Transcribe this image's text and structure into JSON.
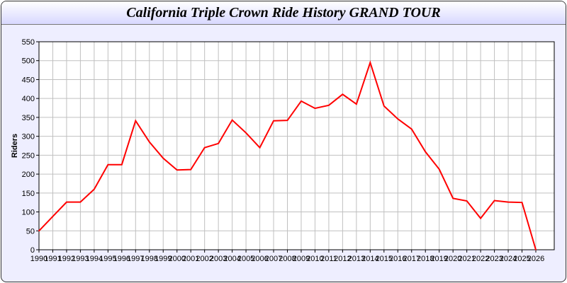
{
  "chart_data": {
    "type": "line",
    "title": "California Triple Crown Ride History GRAND TOUR",
    "xlabel": "",
    "ylabel": "Riders",
    "ylim": [
      0,
      550
    ],
    "yticks": [
      0,
      50,
      100,
      150,
      200,
      250,
      300,
      350,
      400,
      450,
      500,
      550
    ],
    "grid": true,
    "line_color": "#ff0000",
    "x": [
      1990,
      1991,
      1992,
      1993,
      1994,
      1995,
      1996,
      1997,
      1998,
      1999,
      2000,
      2001,
      2002,
      2003,
      2004,
      2005,
      2006,
      2007,
      2008,
      2009,
      2010,
      2011,
      2012,
      2013,
      2014,
      2015,
      2016,
      2017,
      2018,
      2019,
      2020,
      2021,
      2022,
      2023,
      2024,
      2025,
      2026
    ],
    "values": [
      50,
      88,
      126,
      126,
      160,
      225,
      225,
      341,
      285,
      242,
      211,
      212,
      270,
      281,
      343,
      309,
      270,
      341,
      342,
      393,
      374,
      382,
      411,
      385,
      495,
      380,
      346,
      319,
      259,
      213,
      136,
      129,
      83,
      130,
      126,
      125,
      0
    ]
  }
}
